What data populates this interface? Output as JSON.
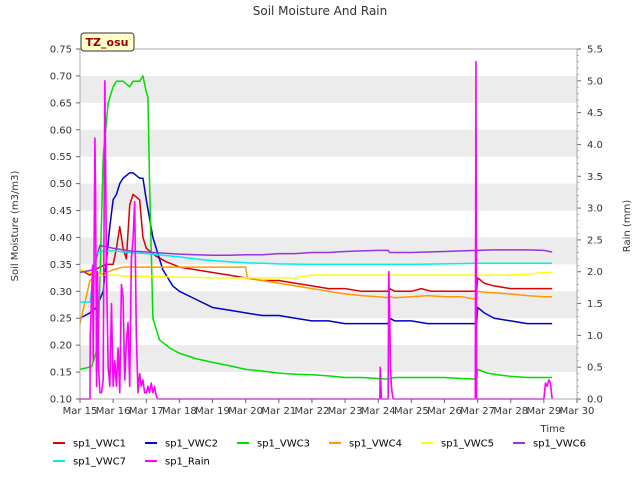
{
  "chart_data": {
    "type": "line",
    "title": "Soil Moisture And Rain",
    "site_label": "TZ_osu",
    "xlabel": "Time",
    "ylabel": "Soil Moisture (m3/m3)",
    "y2label": "Rain (mm)",
    "xlim": [
      15,
      30
    ],
    "x_ticks": [
      "Mar 15",
      "Mar 16",
      "Mar 17",
      "Mar 18",
      "Mar 19",
      "Mar 20",
      "Mar 21",
      "Mar 22",
      "Mar 23",
      "Mar 24",
      "Mar 25",
      "Mar 26",
      "Mar 27",
      "Mar 28",
      "Mar 29",
      "Mar 30"
    ],
    "ylim": [
      0.1,
      0.75
    ],
    "y_ticks": [
      "0.10",
      "0.15",
      "0.20",
      "0.25",
      "0.30",
      "0.35",
      "0.40",
      "0.45",
      "0.50",
      "0.55",
      "0.60",
      "0.65",
      "0.70",
      "0.75"
    ],
    "y2lim": [
      0,
      5.5
    ],
    "y2_ticks": [
      "0.0",
      "0.5",
      "1.0",
      "1.5",
      "2.0",
      "2.5",
      "3.0",
      "3.5",
      "4.0",
      "4.5",
      "5.0",
      "5.5"
    ],
    "grid": "horizontal bands",
    "legend_position": "bottom",
    "series": [
      {
        "name": "sp1_VWC1",
        "color": "#dd0000",
        "axis": "left",
        "x": [
          15.0,
          15.3,
          15.45,
          15.6,
          15.8,
          16.0,
          16.1,
          16.2,
          16.3,
          16.4,
          16.5,
          16.6,
          16.7,
          16.8,
          16.9,
          17.0,
          17.1,
          17.3,
          17.6,
          18.0,
          18.5,
          19.0,
          19.5,
          20.0,
          20.5,
          21.0,
          21.5,
          22.0,
          22.5,
          23.0,
          23.5,
          24.0,
          24.3,
          24.35,
          24.5,
          24.8,
          25.0,
          25.3,
          25.6,
          26.0,
          26.5,
          26.97,
          27.0,
          27.2,
          27.5,
          28.0,
          28.5,
          29.0,
          29.25
        ],
        "y": [
          0.34,
          0.33,
          0.34,
          0.345,
          0.35,
          0.35,
          0.38,
          0.42,
          0.38,
          0.36,
          0.46,
          0.48,
          0.475,
          0.47,
          0.4,
          0.38,
          0.375,
          0.365,
          0.355,
          0.345,
          0.34,
          0.335,
          0.33,
          0.325,
          0.32,
          0.32,
          0.315,
          0.31,
          0.305,
          0.305,
          0.3,
          0.3,
          0.3,
          0.305,
          0.3,
          0.3,
          0.3,
          0.305,
          0.3,
          0.3,
          0.3,
          0.3,
          0.325,
          0.315,
          0.31,
          0.305,
          0.305,
          0.305,
          0.305
        ]
      },
      {
        "name": "sp1_VWC2",
        "color": "#0000cc",
        "axis": "left",
        "x": [
          15.0,
          15.3,
          15.5,
          15.7,
          15.9,
          16.0,
          16.1,
          16.2,
          16.3,
          16.5,
          16.6,
          16.8,
          16.9,
          17.0,
          17.2,
          17.5,
          17.8,
          18.0,
          18.5,
          19.0,
          19.5,
          20.0,
          20.5,
          21.0,
          21.5,
          22.0,
          22.5,
          23.0,
          23.5,
          24.0,
          24.3,
          24.35,
          24.5,
          25.0,
          25.5,
          26.0,
          26.5,
          26.97,
          27.0,
          27.2,
          27.5,
          28.0,
          28.5,
          29.0,
          29.25
        ],
        "y": [
          0.25,
          0.26,
          0.27,
          0.3,
          0.42,
          0.47,
          0.48,
          0.5,
          0.51,
          0.52,
          0.52,
          0.51,
          0.51,
          0.47,
          0.4,
          0.34,
          0.31,
          0.3,
          0.285,
          0.27,
          0.265,
          0.26,
          0.255,
          0.255,
          0.25,
          0.245,
          0.245,
          0.24,
          0.24,
          0.24,
          0.24,
          0.25,
          0.245,
          0.245,
          0.24,
          0.24,
          0.24,
          0.24,
          0.27,
          0.26,
          0.25,
          0.245,
          0.24,
          0.24,
          0.24
        ]
      },
      {
        "name": "sp1_VWC3",
        "color": "#00dd00",
        "axis": "left",
        "x": [
          15.0,
          15.35,
          15.55,
          15.7,
          15.85,
          16.0,
          16.1,
          16.3,
          16.5,
          16.6,
          16.8,
          16.9,
          17.0,
          17.05,
          17.1,
          17.2,
          17.4,
          17.7,
          18.0,
          18.5,
          19.0,
          19.5,
          20.0,
          20.5,
          21.0,
          21.5,
          22.0,
          22.5,
          23.0,
          23.5,
          24.0,
          24.3,
          24.5,
          25.0,
          25.5,
          26.0,
          26.5,
          26.97,
          27.0,
          27.3,
          27.6,
          28.0,
          28.5,
          29.0,
          29.25
        ],
        "y": [
          0.155,
          0.16,
          0.2,
          0.55,
          0.65,
          0.68,
          0.69,
          0.69,
          0.68,
          0.69,
          0.69,
          0.7,
          0.67,
          0.66,
          0.5,
          0.25,
          0.21,
          0.195,
          0.185,
          0.175,
          0.168,
          0.162,
          0.155,
          0.152,
          0.148,
          0.146,
          0.145,
          0.143,
          0.14,
          0.14,
          0.138,
          0.137,
          0.14,
          0.14,
          0.14,
          0.14,
          0.138,
          0.137,
          0.155,
          0.148,
          0.145,
          0.142,
          0.14,
          0.14,
          0.14
        ]
      },
      {
        "name": "sp1_VWC4",
        "color": "#ff9900",
        "axis": "left",
        "x": [
          15.0,
          15.3,
          15.5,
          15.8,
          16.0,
          16.3,
          16.6,
          17.0,
          17.5,
          18.0,
          18.5,
          19.0,
          19.5,
          20.0,
          20.05,
          20.5,
          21.0,
          21.5,
          22.0,
          22.5,
          23.0,
          23.5,
          24.0,
          24.3,
          24.35,
          24.5,
          25.0,
          25.5,
          26.0,
          26.5,
          26.97,
          27.0,
          27.3,
          28.0,
          28.5,
          29.0,
          29.25
        ],
        "y": [
          0.24,
          0.32,
          0.33,
          0.335,
          0.34,
          0.345,
          0.345,
          0.345,
          0.345,
          0.345,
          0.345,
          0.345,
          0.345,
          0.345,
          0.325,
          0.32,
          0.315,
          0.31,
          0.305,
          0.3,
          0.295,
          0.292,
          0.29,
          0.288,
          0.29,
          0.288,
          0.29,
          0.292,
          0.29,
          0.29,
          0.285,
          0.3,
          0.298,
          0.295,
          0.292,
          0.29,
          0.29
        ]
      },
      {
        "name": "sp1_VWC5",
        "color": "#ffff00",
        "axis": "left",
        "x": [
          15.0,
          15.3,
          15.6,
          16.0,
          16.5,
          17.0,
          17.5,
          18.0,
          18.5,
          19.0,
          19.5,
          20.0,
          20.5,
          21.0,
          21.5,
          22.0,
          22.5,
          23.0,
          23.5,
          24.0,
          24.5,
          25.0,
          25.5,
          26.0,
          26.5,
          27.0,
          27.5,
          28.0,
          28.5,
          29.0,
          29.25
        ],
        "y": [
          0.34,
          0.335,
          0.33,
          0.33,
          0.328,
          0.328,
          0.327,
          0.326,
          0.326,
          0.325,
          0.325,
          0.325,
          0.325,
          0.325,
          0.325,
          0.33,
          0.33,
          0.33,
          0.33,
          0.33,
          0.33,
          0.33,
          0.33,
          0.33,
          0.33,
          0.33,
          0.33,
          0.33,
          0.332,
          0.335,
          0.335
        ]
      },
      {
        "name": "sp1_VWC6",
        "color": "#9933dd",
        "axis": "left",
        "x": [
          15.0,
          15.4,
          15.6,
          16.0,
          16.5,
          17.0,
          17.5,
          18.0,
          18.5,
          19.0,
          19.5,
          20.0,
          20.5,
          21.0,
          21.5,
          22.0,
          22.5,
          23.0,
          23.5,
          24.0,
          24.3,
          24.35,
          24.5,
          25.0,
          25.5,
          26.0,
          26.5,
          27.0,
          27.5,
          28.0,
          28.5,
          29.0,
          29.25
        ],
        "y": [
          0.335,
          0.34,
          0.385,
          0.38,
          0.375,
          0.373,
          0.371,
          0.369,
          0.368,
          0.367,
          0.367,
          0.368,
          0.368,
          0.37,
          0.37,
          0.372,
          0.372,
          0.374,
          0.375,
          0.376,
          0.376,
          0.372,
          0.372,
          0.372,
          0.373,
          0.374,
          0.375,
          0.376,
          0.377,
          0.377,
          0.377,
          0.376,
          0.373
        ]
      },
      {
        "name": "sp1_VWC7",
        "color": "#00eeee",
        "axis": "left",
        "x": [
          15.0,
          15.3,
          15.5,
          15.7,
          16.0,
          16.5,
          17.0,
          17.5,
          18.0,
          18.5,
          19.0,
          19.5,
          20.0,
          20.5,
          21.0,
          22.0,
          23.0,
          24.0,
          25.0,
          26.0,
          27.0,
          28.0,
          29.0,
          29.25
        ],
        "y": [
          0.28,
          0.28,
          0.37,
          0.375,
          0.375,
          0.372,
          0.37,
          0.367,
          0.364,
          0.36,
          0.357,
          0.355,
          0.353,
          0.352,
          0.351,
          0.35,
          0.35,
          0.35,
          0.35,
          0.351,
          0.352,
          0.352,
          0.352,
          0.352
        ]
      },
      {
        "name": "sp1_Rain",
        "color": "#ff00ff",
        "axis": "right",
        "x": [
          15.0,
          15.3,
          15.31,
          15.38,
          15.4,
          15.45,
          15.47,
          15.5,
          15.53,
          15.56,
          15.6,
          15.65,
          15.7,
          15.75,
          15.8,
          15.85,
          15.9,
          15.95,
          16.0,
          16.05,
          16.1,
          16.15,
          16.2,
          16.25,
          16.3,
          16.35,
          16.4,
          16.45,
          16.5,
          16.55,
          16.6,
          16.65,
          16.7,
          16.75,
          16.8,
          16.85,
          16.9,
          16.95,
          17.0,
          17.05,
          17.1,
          17.15,
          17.2,
          17.25,
          17.3,
          17.35,
          24.0,
          24.05,
          24.06,
          24.1,
          24.3,
          24.32,
          24.35,
          24.37,
          24.4,
          24.42,
          24.45,
          26.93,
          26.95,
          26.97,
          26.99,
          27.01,
          29.0,
          29.05,
          29.1,
          29.15,
          29.2,
          29.25
        ],
        "y": [
          0,
          0,
          1.0,
          2.1,
          0.6,
          4.1,
          3.2,
          0.2,
          2.0,
          0.5,
          0.1,
          0.1,
          0.3,
          5.0,
          2.0,
          0.5,
          0.2,
          1.5,
          0.2,
          0.6,
          0.2,
          0.8,
          0.1,
          1.8,
          1.6,
          0.3,
          0.9,
          1.2,
          0.2,
          2.2,
          2.5,
          3.1,
          1.0,
          0.1,
          0.4,
          0.2,
          0.3,
          0.1,
          0.1,
          0.2,
          0.1,
          0.25,
          0.1,
          0.2,
          0.05,
          0,
          0,
          0,
          0.5,
          0,
          0,
          2.0,
          1.2,
          0.5,
          0.2,
          0.1,
          0,
          0,
          5.3,
          0,
          0,
          0,
          0,
          0.25,
          0.2,
          0.3,
          0.25,
          0
        ]
      }
    ]
  }
}
